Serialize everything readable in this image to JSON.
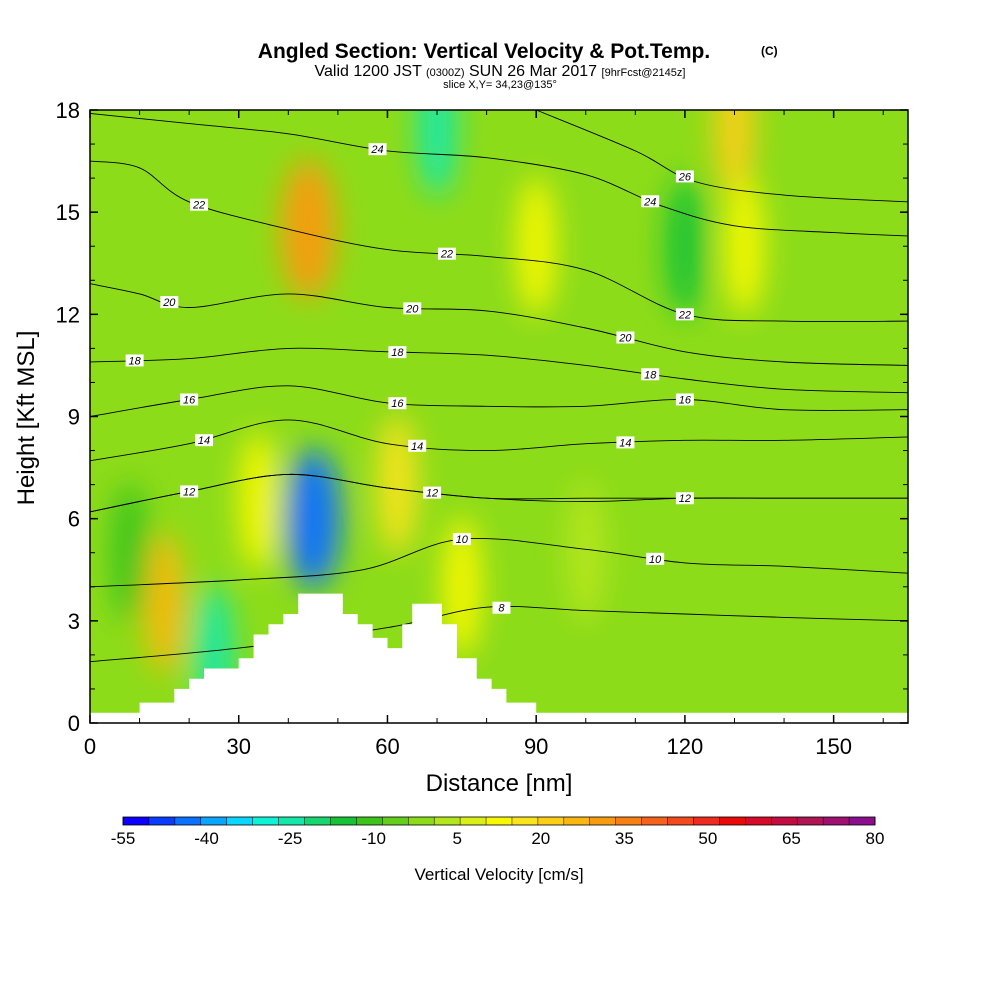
{
  "title": {
    "main": "Angled Section: Vertical Velocity & Pot.Temp.",
    "copyright": "(C)",
    "valid_prefix": "Valid 1200 JST",
    "utc": "(0300Z)",
    "valid_date": "SUN 26 Mar 2017",
    "forecast": "[9hrFcst@2145z]",
    "slice": "slice X,Y= 34,23@135°"
  },
  "chart_data": {
    "type": "heatmap",
    "xlabel": "Distance [nm]",
    "ylabel": "Height [Kft MSL]",
    "xlim": [
      0,
      165
    ],
    "ylim": [
      0,
      18
    ],
    "x_ticks": [
      "0",
      "30",
      "60",
      "90",
      "120",
      "150"
    ],
    "x_tick_values": [
      0,
      30,
      60,
      90,
      120,
      150
    ],
    "y_ticks": [
      "0",
      "3",
      "6",
      "9",
      "12",
      "15",
      "18"
    ],
    "y_tick_values": [
      0,
      3,
      6,
      9,
      12,
      15,
      18
    ],
    "colorbar": {
      "label": "Vertical Velocity [cm/s]",
      "min": -55,
      "max": 80,
      "step": 5,
      "tick_labels": [
        "-55",
        "-40",
        "-25",
        "-10",
        "5",
        "20",
        "35",
        "50",
        "65",
        "80"
      ],
      "colors": [
        "#0b00ff",
        "#0a3cff",
        "#0a70ff",
        "#0aa5ff",
        "#0ad7ff",
        "#0ef2d8",
        "#13e8a8",
        "#15d76e",
        "#14c336",
        "#3cc41b",
        "#63cf1c",
        "#8ddc1a",
        "#b4e61c",
        "#d9ef16",
        "#f8f805",
        "#fae41c",
        "#fccf14",
        "#fab80f",
        "#f89c0d",
        "#f78011",
        "#f5621c",
        "#f24a1c",
        "#ef2a1e",
        "#ea0a0a",
        "#d80a2a",
        "#c40c40",
        "#b01554",
        "#a01070",
        "#8a0f8c"
      ]
    },
    "background_level": 0,
    "velocity_features": [
      {
        "x": 15,
        "y": 3.5,
        "value": 30
      },
      {
        "x": 25,
        "y": 2.0,
        "value": -22
      },
      {
        "x": 44,
        "y": 14.5,
        "value": 38
      },
      {
        "x": 45,
        "y": 6.0,
        "value": -42
      },
      {
        "x": 34,
        "y": 6.5,
        "value": 15
      },
      {
        "x": 62,
        "y": 7.0,
        "value": 22
      },
      {
        "x": 75,
        "y": 4.0,
        "value": 15
      },
      {
        "x": 90,
        "y": 14.0,
        "value": 18
      },
      {
        "x": 70,
        "y": 17.5,
        "value": -25
      },
      {
        "x": 120,
        "y": 14.0,
        "value": -12
      },
      {
        "x": 130,
        "y": 17.5,
        "value": 28
      },
      {
        "x": 132,
        "y": 14.0,
        "value": 15
      },
      {
        "x": 8,
        "y": 5.0,
        "value": -10
      },
      {
        "x": 100,
        "y": 5.0,
        "value": 8
      }
    ],
    "terrain": [
      [
        10,
        0.6
      ],
      [
        17,
        0.6
      ],
      [
        17,
        1.0
      ],
      [
        20,
        1.0
      ],
      [
        20,
        1.3
      ],
      [
        23,
        1.3
      ],
      [
        23,
        1.6
      ],
      [
        30,
        1.6
      ],
      [
        30,
        1.9
      ],
      [
        33,
        1.9
      ],
      [
        33,
        2.6
      ],
      [
        36,
        2.6
      ],
      [
        36,
        2.9
      ],
      [
        39,
        2.9
      ],
      [
        39,
        3.2
      ],
      [
        42,
        3.2
      ],
      [
        42,
        3.8
      ],
      [
        51,
        3.8
      ],
      [
        51,
        3.2
      ],
      [
        54,
        3.2
      ],
      [
        54,
        2.9
      ],
      [
        57,
        2.9
      ],
      [
        57,
        2.5
      ],
      [
        60,
        2.5
      ],
      [
        60,
        2.2
      ],
      [
        63,
        2.2
      ],
      [
        63,
        2.9
      ],
      [
        65,
        2.9
      ],
      [
        65,
        3.5
      ],
      [
        71,
        3.5
      ],
      [
        71,
        2.9
      ],
      [
        74,
        2.9
      ],
      [
        74,
        1.9
      ],
      [
        78,
        1.9
      ],
      [
        78,
        1.3
      ],
      [
        81,
        1.3
      ],
      [
        81,
        1.0
      ],
      [
        84,
        1.0
      ],
      [
        84,
        0.6
      ],
      [
        90,
        0.6
      ],
      [
        90,
        0.3
      ]
    ],
    "pot_temp_contours": [
      {
        "label": "8",
        "x": [
          0,
          30,
          60,
          80,
          100,
          120,
          140,
          165
        ],
        "y": [
          1.8,
          2.2,
          2.8,
          3.4,
          3.3,
          3.2,
          3.1,
          3.0
        ],
        "label_x": 83
      },
      {
        "label": "10",
        "x": [
          0,
          30,
          55,
          75,
          100,
          120,
          140,
          165
        ],
        "y": [
          4.0,
          4.2,
          4.5,
          5.4,
          5.1,
          4.7,
          4.6,
          4.4
        ],
        "label_x": 75
      },
      {
        "label": "10",
        "x": [
          0,
          30,
          55,
          75,
          100,
          120,
          140,
          165
        ],
        "y": [
          4.0,
          4.2,
          4.5,
          5.4,
          5.1,
          4.7,
          4.6,
          4.4
        ],
        "label_x": 114
      },
      {
        "label": "12",
        "x": [
          0,
          20,
          40,
          60,
          80,
          100,
          120,
          140,
          165
        ],
        "y": [
          6.2,
          6.8,
          7.3,
          6.9,
          6.6,
          6.5,
          6.6,
          6.6,
          6.6
        ],
        "label_x": 20
      },
      {
        "label": "12",
        "x": [
          0,
          20,
          40,
          60,
          80,
          100,
          120,
          140,
          165
        ],
        "y": [
          6.2,
          6.8,
          7.3,
          6.9,
          6.6,
          6.6,
          6.6,
          6.6,
          6.6
        ],
        "label_x": 69
      },
      {
        "label": "12",
        "x": [
          0,
          20,
          40,
          60,
          80,
          100,
          120,
          140,
          165
        ],
        "y": [
          6.2,
          6.8,
          7.3,
          6.9,
          6.6,
          6.6,
          6.6,
          6.6,
          6.6
        ],
        "label_x": 120
      },
      {
        "label": "14",
        "x": [
          0,
          20,
          40,
          60,
          80,
          100,
          120,
          140,
          165
        ],
        "y": [
          7.7,
          8.2,
          8.9,
          8.2,
          8.0,
          8.2,
          8.3,
          8.3,
          8.4
        ],
        "label_x": 23
      },
      {
        "label": "14",
        "x": [
          0,
          20,
          40,
          60,
          80,
          100,
          120,
          140,
          165
        ],
        "y": [
          7.7,
          8.2,
          8.9,
          8.2,
          8.0,
          8.2,
          8.3,
          8.3,
          8.4
        ],
        "label_x": 66
      },
      {
        "label": "14",
        "x": [
          0,
          20,
          40,
          60,
          80,
          100,
          120,
          140,
          165
        ],
        "y": [
          7.7,
          8.2,
          8.9,
          8.2,
          8.0,
          8.2,
          8.3,
          8.3,
          8.4
        ],
        "label_x": 108
      },
      {
        "label": "16",
        "x": [
          0,
          20,
          40,
          60,
          80,
          100,
          120,
          140,
          165
        ],
        "y": [
          9.0,
          9.5,
          9.9,
          9.4,
          9.3,
          9.3,
          9.5,
          9.2,
          9.2
        ],
        "label_x": 20
      },
      {
        "label": "16",
        "x": [
          0,
          20,
          40,
          60,
          80,
          100,
          120,
          140,
          165
        ],
        "y": [
          9.0,
          9.5,
          9.9,
          9.4,
          9.3,
          9.3,
          9.5,
          9.2,
          9.2
        ],
        "label_x": 62
      },
      {
        "label": "16",
        "x": [
          0,
          20,
          40,
          60,
          80,
          100,
          120,
          140,
          165
        ],
        "y": [
          9.0,
          9.5,
          9.9,
          9.4,
          9.3,
          9.3,
          9.5,
          9.2,
          9.2
        ],
        "label_x": 120
      },
      {
        "label": "18",
        "x": [
          0,
          20,
          40,
          60,
          80,
          100,
          120,
          140,
          165
        ],
        "y": [
          10.6,
          10.7,
          11.0,
          10.9,
          10.8,
          10.5,
          10.1,
          9.8,
          9.7
        ],
        "label_x": 9
      },
      {
        "label": "18",
        "x": [
          0,
          20,
          40,
          60,
          80,
          100,
          120,
          140,
          165
        ],
        "y": [
          10.6,
          10.7,
          11.0,
          10.9,
          10.8,
          10.5,
          10.1,
          9.8,
          9.7
        ],
        "label_x": 62
      },
      {
        "label": "18",
        "x": [
          0,
          20,
          40,
          60,
          80,
          100,
          120,
          140,
          165
        ],
        "y": [
          10.6,
          10.7,
          11.0,
          10.9,
          10.8,
          10.5,
          10.1,
          9.8,
          9.7
        ],
        "label_x": 113
      },
      {
        "label": "20",
        "x": [
          0,
          10,
          20,
          40,
          60,
          80,
          100,
          120,
          140,
          165
        ],
        "y": [
          12.9,
          12.6,
          12.2,
          12.6,
          12.2,
          12.1,
          11.6,
          10.9,
          10.6,
          10.5
        ],
        "label_x": 16
      },
      {
        "label": "20",
        "x": [
          0,
          10,
          20,
          40,
          60,
          80,
          100,
          120,
          140,
          165
        ],
        "y": [
          12.9,
          12.6,
          12.2,
          12.6,
          12.2,
          12.1,
          11.6,
          10.9,
          10.6,
          10.5
        ],
        "label_x": 65
      },
      {
        "label": "20",
        "x": [
          0,
          10,
          20,
          40,
          60,
          80,
          100,
          120,
          140,
          165
        ],
        "y": [
          12.9,
          12.6,
          12.2,
          12.6,
          12.2,
          12.1,
          11.6,
          10.9,
          10.6,
          10.5
        ],
        "label_x": 108
      },
      {
        "label": "22",
        "x": [
          0,
          10,
          20,
          40,
          60,
          80,
          100,
          120,
          140,
          165
        ],
        "y": [
          16.5,
          16.3,
          15.3,
          14.5,
          13.9,
          13.7,
          13.3,
          12.0,
          11.8,
          11.8
        ],
        "label_x": 22
      },
      {
        "label": "22",
        "x": [
          0,
          10,
          20,
          40,
          60,
          80,
          100,
          120,
          140,
          165
        ],
        "y": [
          16.5,
          16.3,
          15.3,
          14.5,
          13.9,
          13.7,
          13.3,
          12.0,
          11.8,
          11.8
        ],
        "label_x": 72
      },
      {
        "label": "22",
        "x": [
          0,
          10,
          20,
          40,
          60,
          80,
          100,
          120,
          140,
          165
        ],
        "y": [
          16.5,
          16.3,
          15.3,
          14.5,
          13.9,
          13.7,
          13.3,
          12.0,
          11.8,
          11.8
        ],
        "label_x": 120
      },
      {
        "label": "24",
        "x": [
          0,
          20,
          40,
          60,
          80,
          100,
          115,
          130,
          150,
          165
        ],
        "y": [
          17.9,
          17.6,
          17.3,
          16.8,
          16.6,
          16.1,
          15.2,
          14.6,
          14.4,
          14.3
        ],
        "label_x": 58
      },
      {
        "label": "24",
        "x": [
          0,
          20,
          40,
          60,
          80,
          100,
          115,
          130,
          150,
          165
        ],
        "y": [
          17.9,
          17.6,
          17.3,
          16.8,
          16.6,
          16.1,
          15.2,
          14.6,
          14.4,
          14.3
        ],
        "label_x": 113
      },
      {
        "label": "26",
        "x": [
          90,
          110,
          122,
          140,
          165
        ],
        "y": [
          18.0,
          16.8,
          15.9,
          15.5,
          15.3
        ],
        "label_x": 120
      }
    ]
  }
}
